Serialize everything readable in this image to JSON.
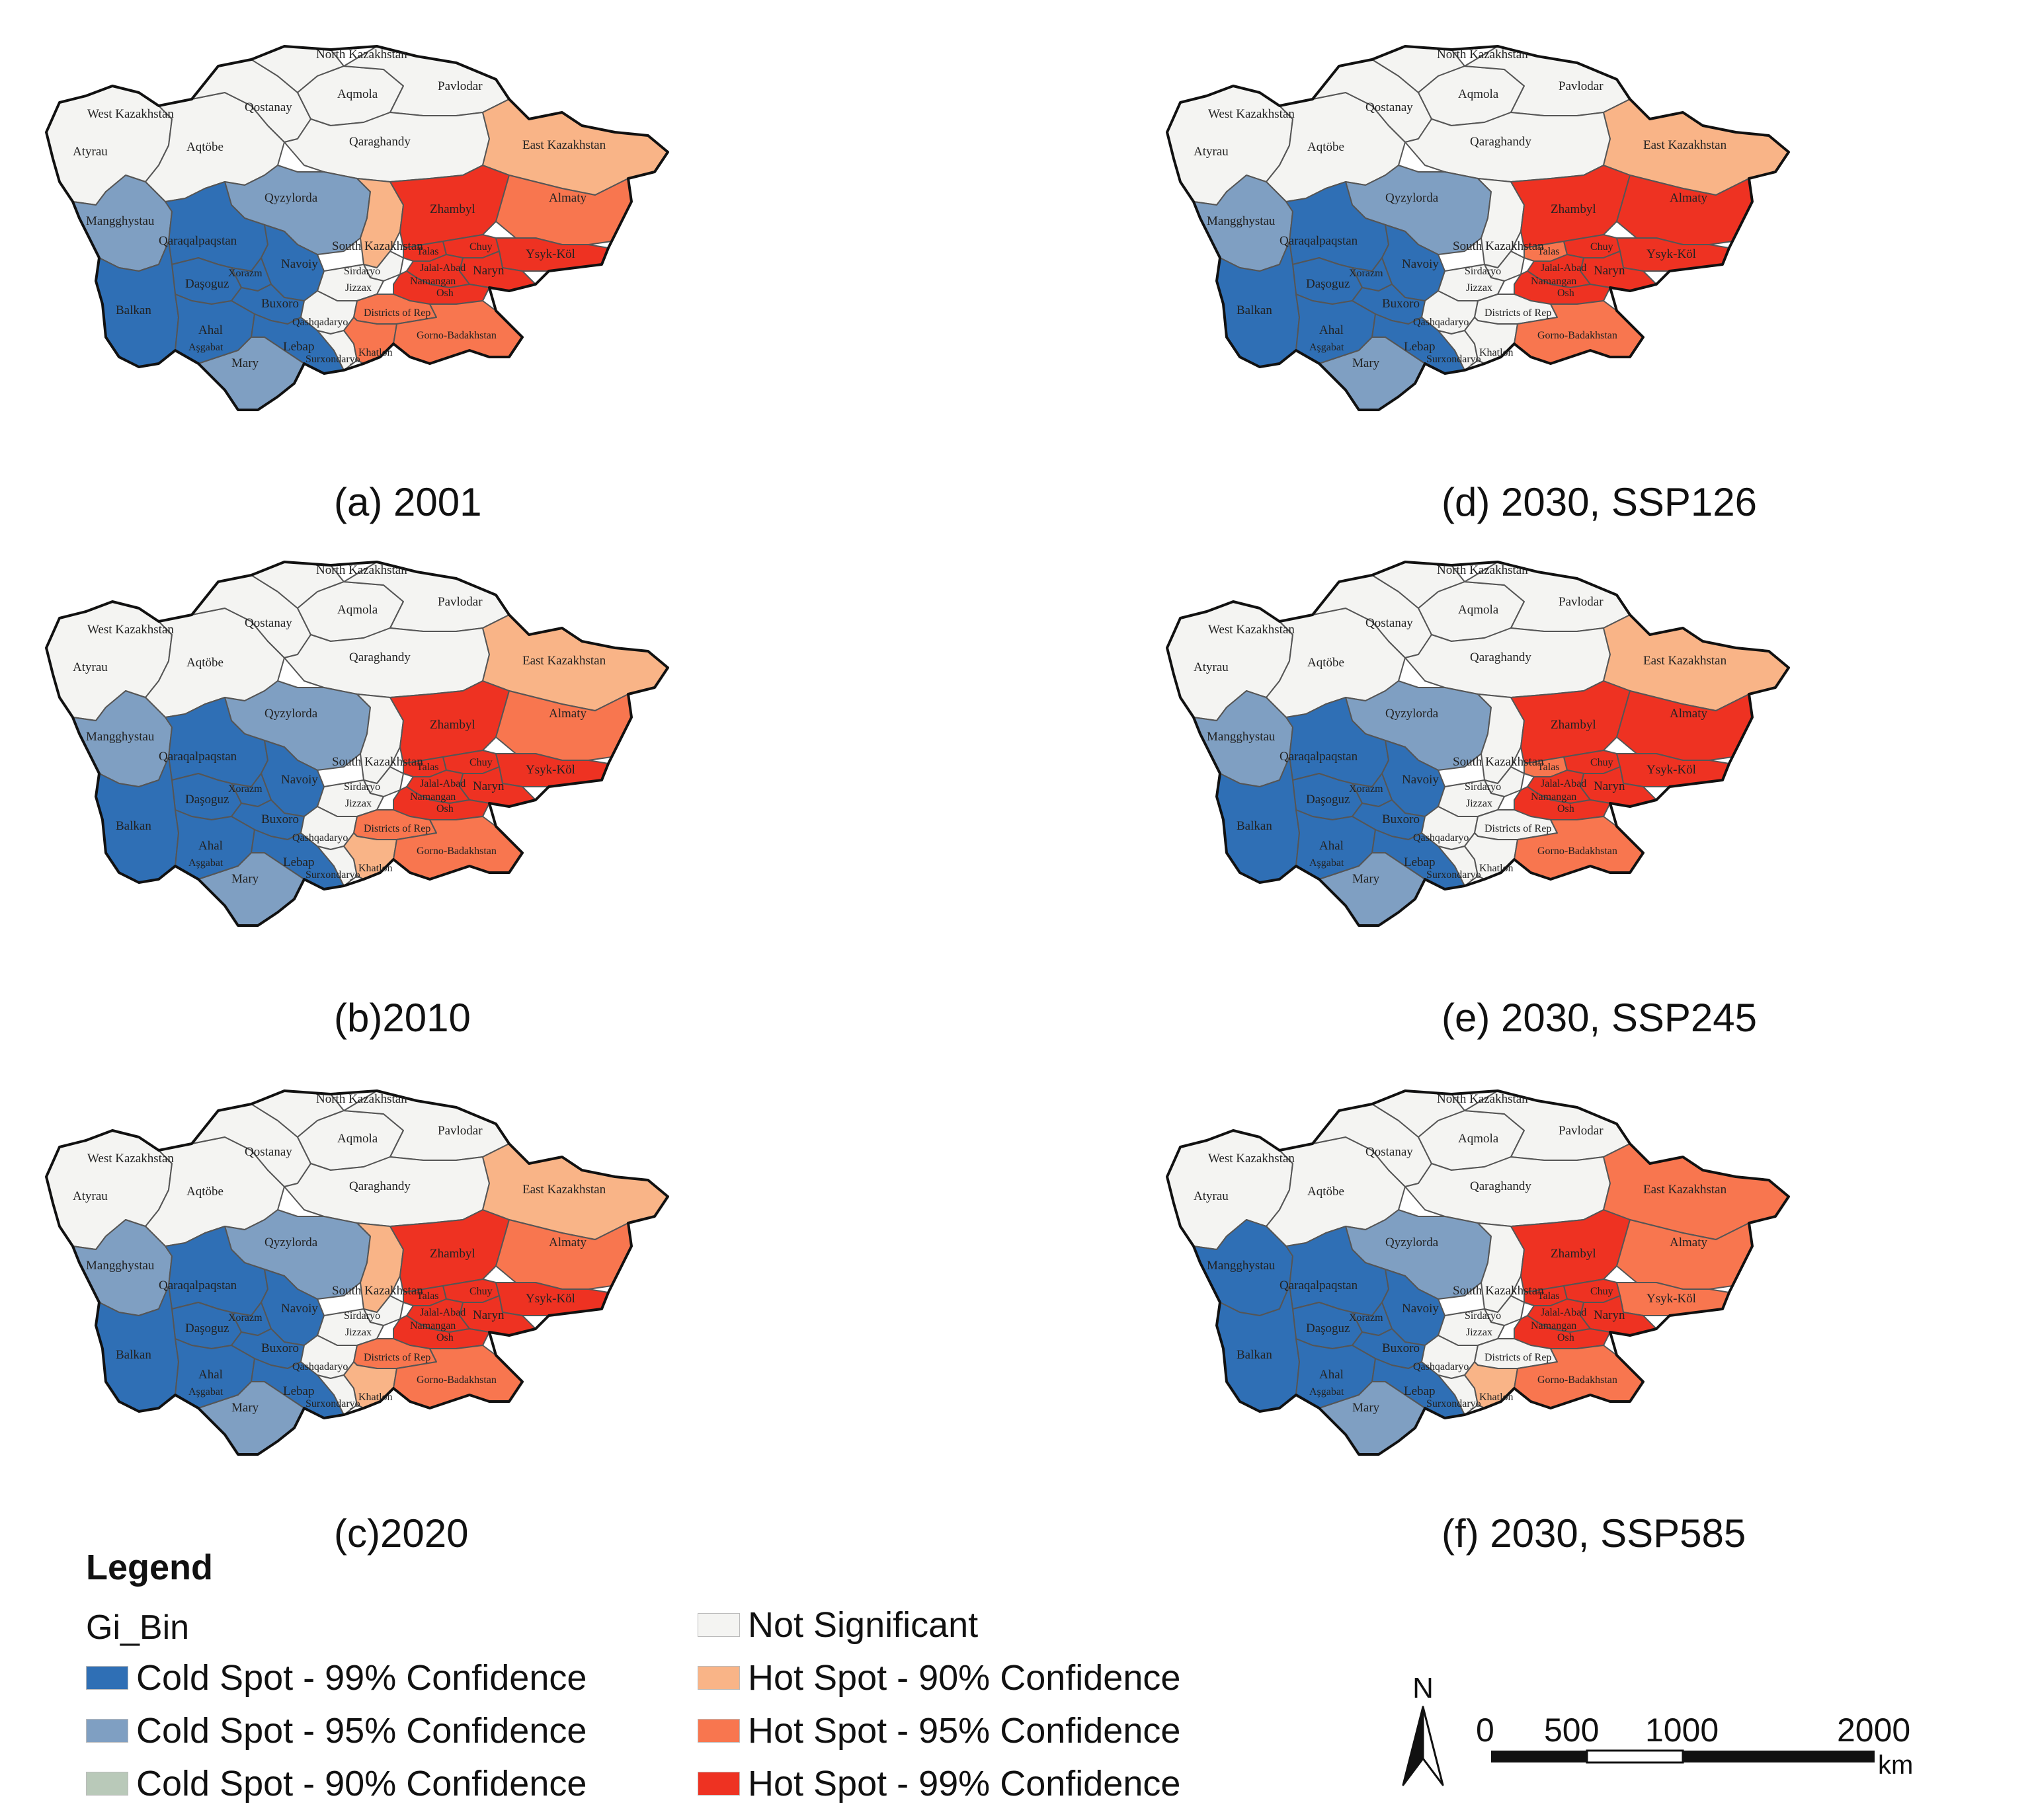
{
  "colors": {
    "cold99": "#2f6fb5",
    "cold95": "#7f9fc2",
    "cold90": "#b9c9b9",
    "ns": "#f4f4f2",
    "hot90": "#f9b487",
    "hot95": "#f8764f",
    "hot99": "#ee3222"
  },
  "labels": {
    "north_kazakhstan": "North Kazakhstan",
    "west_kazakhstan": "West Kazakhstan",
    "aqmola": "Aqmola",
    "pavlodar": "Pavlodar",
    "qostanay": "Qostanay",
    "atyrau": "Atyrau",
    "aqtobe": "Aqtöbe",
    "qaraghandy": "Qaraghandy",
    "east_kazakhstan": "East Kazakhstan",
    "mangghystau": "Mangghystau",
    "qyzylorda": "Qyzylorda",
    "zhambyl": "Zhambyl",
    "almaty": "Almaty",
    "south_kazakhstan": "South Kazakhstan",
    "qaraqalpaqstan": "Qaraqalpaqstan",
    "navoiy": "Navoiy",
    "xorazm": "Xorazm",
    "dasoguz": "Daşoguz",
    "balkan": "Balkan",
    "ahal": "Ahal",
    "ashgabat": "Aşgabat",
    "buxoro": "Buxoro",
    "lebap": "Lebap",
    "mary": "Mary",
    "sirdaryo": "Sirdaryo",
    "jizzax": "Jizzax",
    "talas": "Talas",
    "chuy": "Chuy",
    "ysyk_kol": "Ysyk-Köl",
    "jalal_abad": "Jalal-Abad",
    "naryn": "Naryn",
    "osh": "Osh",
    "namangan": "Namangan",
    "qashqadaryo": "Qashqadaryo",
    "districts_rep": "Districts of Rep",
    "gorno_badakhstan": "Gorno-Badakhstan",
    "khatlon": "Khatlon",
    "surxondaryo": "Surxondaryo"
  },
  "panels": [
    {
      "caption": "(a) 2001",
      "classes": {
        "mangghystau": "cold95",
        "qyzylorda": "cold95",
        "qaraqalpaqstan": "cold99",
        "navoiy": "cold99",
        "xorazm": "cold99",
        "dasoguz": "cold99",
        "balkan": "cold99",
        "ahal": "cold99",
        "buxoro": "cold99",
        "lebap": "cold99",
        "mary": "cold95",
        "zhambyl": "hot99",
        "almaty": "hot95",
        "east_kazakhstan": "hot90",
        "south_kazakhstan": "hot90",
        "chuy": "hot99",
        "ysyk_kol": "hot99",
        "naryn": "hot99",
        "jalal_abad": "hot99",
        "talas": "hot99",
        "osh": "hot99",
        "gorno_badakhstan": "hot95",
        "khatlon": "hot95",
        "districts_rep": "hot95",
        "sirdaryo": "ns",
        "jizzax": "ns",
        "qashqadaryo": "ns",
        "surxondaryo": "ns"
      }
    },
    {
      "caption": "(b)2010",
      "classes": {
        "mangghystau": "cold95",
        "qyzylorda": "cold95",
        "qaraqalpaqstan": "cold99",
        "navoiy": "cold99",
        "xorazm": "cold99",
        "dasoguz": "cold99",
        "balkan": "cold99",
        "ahal": "cold99",
        "buxoro": "cold99",
        "lebap": "cold99",
        "mary": "cold95",
        "zhambyl": "hot99",
        "almaty": "hot95",
        "east_kazakhstan": "hot90",
        "south_kazakhstan": "ns",
        "chuy": "hot99",
        "ysyk_kol": "hot99",
        "naryn": "hot99",
        "jalal_abad": "hot99",
        "talas": "hot99",
        "osh": "hot99",
        "gorno_badakhstan": "hot95",
        "khatlon": "hot90",
        "districts_rep": "hot95",
        "sirdaryo": "ns",
        "jizzax": "ns",
        "qashqadaryo": "ns",
        "surxondaryo": "ns"
      }
    },
    {
      "caption": "(c)2020",
      "classes": {
        "mangghystau": "cold95",
        "qyzylorda": "cold95",
        "qaraqalpaqstan": "cold99",
        "navoiy": "cold99",
        "xorazm": "cold99",
        "dasoguz": "cold99",
        "balkan": "cold99",
        "ahal": "cold99",
        "buxoro": "cold99",
        "lebap": "cold99",
        "mary": "cold95",
        "zhambyl": "hot99",
        "almaty": "hot95",
        "east_kazakhstan": "hot90",
        "south_kazakhstan": "hot90",
        "chuy": "hot99",
        "ysyk_kol": "hot99",
        "naryn": "hot99",
        "jalal_abad": "hot99",
        "talas": "hot99",
        "osh": "hot99",
        "gorno_badakhstan": "hot95",
        "khatlon": "hot90",
        "districts_rep": "hot95",
        "sirdaryo": "ns",
        "jizzax": "ns",
        "qashqadaryo": "ns",
        "surxondaryo": "ns"
      }
    },
    {
      "caption": "(d) 2030, SSP126",
      "classes": {
        "mangghystau": "cold95",
        "qyzylorda": "cold95",
        "qaraqalpaqstan": "cold99",
        "navoiy": "cold99",
        "xorazm": "cold99",
        "dasoguz": "cold99",
        "balkan": "cold99",
        "ahal": "cold99",
        "buxoro": "cold99",
        "lebap": "cold99",
        "mary": "cold95",
        "zhambyl": "hot99",
        "almaty": "hot99",
        "east_kazakhstan": "hot90",
        "south_kazakhstan": "ns",
        "chuy": "hot99",
        "ysyk_kol": "hot99",
        "naryn": "hot99",
        "jalal_abad": "hot99",
        "talas": "hot95",
        "osh": "hot99",
        "gorno_badakhstan": "hot95",
        "khatlon": "ns",
        "districts_rep": "ns",
        "sirdaryo": "ns",
        "jizzax": "ns",
        "qashqadaryo": "ns",
        "surxondaryo": "ns"
      }
    },
    {
      "caption": "(e) 2030, SSP245",
      "classes": {
        "mangghystau": "cold95",
        "qyzylorda": "cold95",
        "qaraqalpaqstan": "cold99",
        "navoiy": "cold99",
        "xorazm": "cold99",
        "dasoguz": "cold99",
        "balkan": "cold99",
        "ahal": "cold99",
        "buxoro": "cold99",
        "lebap": "cold99",
        "mary": "cold95",
        "zhambyl": "hot99",
        "almaty": "hot99",
        "east_kazakhstan": "hot90",
        "south_kazakhstan": "ns",
        "chuy": "hot99",
        "ysyk_kol": "hot99",
        "naryn": "hot99",
        "jalal_abad": "hot99",
        "talas": "hot95",
        "osh": "hot99",
        "gorno_badakhstan": "hot95",
        "khatlon": "ns",
        "districts_rep": "ns",
        "sirdaryo": "ns",
        "jizzax": "ns",
        "qashqadaryo": "ns",
        "surxondaryo": "ns"
      }
    },
    {
      "caption": "(f) 2030, SSP585",
      "classes": {
        "mangghystau": "cold99",
        "qyzylorda": "cold95",
        "qaraqalpaqstan": "cold99",
        "navoiy": "cold99",
        "xorazm": "cold99",
        "dasoguz": "cold99",
        "balkan": "cold99",
        "ahal": "cold99",
        "buxoro": "cold99",
        "lebap": "cold99",
        "mary": "cold95",
        "zhambyl": "hot99",
        "almaty": "hot95",
        "east_kazakhstan": "hot95",
        "south_kazakhstan": "ns",
        "chuy": "hot99",
        "ysyk_kol": "hot95",
        "naryn": "hot99",
        "jalal_abad": "hot99",
        "talas": "hot99",
        "osh": "hot99",
        "gorno_badakhstan": "hot95",
        "khatlon": "hot90",
        "districts_rep": "ns",
        "sirdaryo": "ns",
        "jizzax": "ns",
        "qashqadaryo": "ns",
        "surxondaryo": "ns"
      }
    }
  ],
  "legend": {
    "title": "Legend",
    "field": "Gi_Bin",
    "items": [
      {
        "key": "cold99",
        "label": "Cold Spot - 99% Confidence"
      },
      {
        "key": "cold95",
        "label": "Cold Spot - 95% Confidence"
      },
      {
        "key": "cold90",
        "label": "Cold Spot - 90% Confidence"
      },
      {
        "key": "ns",
        "label": "Not Significant"
      },
      {
        "key": "hot90",
        "label": "Hot Spot - 90% Confidence"
      },
      {
        "key": "hot95",
        "label": "Hot Spot - 95% Confidence"
      },
      {
        "key": "hot99",
        "label": "Hot Spot - 99% Confidence"
      }
    ]
  },
  "scale": {
    "north": "N",
    "ticks": [
      "0",
      "500",
      "1000",
      "2000"
    ],
    "unit": "km"
  }
}
